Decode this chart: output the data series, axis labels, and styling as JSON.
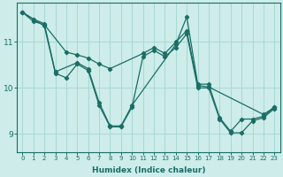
{
  "xlabel": "Humidex (Indice chaleur)",
  "ylabel": "",
  "xlim": [
    -0.5,
    23.5
  ],
  "ylim": [
    8.6,
    11.85
  ],
  "yticks": [
    9,
    10,
    11
  ],
  "xticks": [
    0,
    1,
    2,
    3,
    4,
    5,
    6,
    7,
    8,
    9,
    10,
    11,
    12,
    13,
    14,
    15,
    16,
    17,
    18,
    19,
    20,
    21,
    22,
    23
  ],
  "bg_color": "#cdecea",
  "grid_color": "#a8d8d4",
  "line_color": "#1a6e65",
  "lines": [
    {
      "x": [
        0,
        1,
        2,
        3,
        5,
        6,
        7,
        8,
        9,
        10,
        14,
        15,
        16,
        17,
        18,
        19,
        20,
        21,
        22,
        23
      ],
      "y": [
        11.65,
        11.5,
        11.4,
        10.35,
        10.55,
        10.42,
        9.68,
        9.17,
        9.17,
        9.62,
        10.95,
        11.55,
        10.08,
        10.08,
        9.35,
        9.05,
        9.32,
        9.32,
        9.38,
        9.58
      ]
    },
    {
      "x": [
        0,
        1,
        2,
        4,
        5,
        6,
        7,
        8,
        11,
        12,
        13,
        14,
        15,
        16,
        17,
        22,
        23
      ],
      "y": [
        11.65,
        11.45,
        11.38,
        10.78,
        10.72,
        10.65,
        10.52,
        10.42,
        10.75,
        10.88,
        10.75,
        11.0,
        11.25,
        10.05,
        10.02,
        9.42,
        9.58
      ]
    },
    {
      "x": [
        0,
        2,
        3,
        4,
        5,
        6,
        7,
        8,
        9,
        10,
        11,
        12,
        13,
        14,
        15,
        16,
        17,
        18,
        19,
        20,
        21,
        22,
        23
      ],
      "y": [
        11.65,
        11.35,
        10.32,
        10.22,
        10.52,
        10.38,
        9.62,
        9.15,
        9.15,
        9.58,
        10.68,
        10.82,
        10.68,
        10.88,
        11.18,
        10.0,
        10.0,
        9.32,
        9.02,
        9.02,
        9.28,
        9.35,
        9.55
      ]
    }
  ]
}
